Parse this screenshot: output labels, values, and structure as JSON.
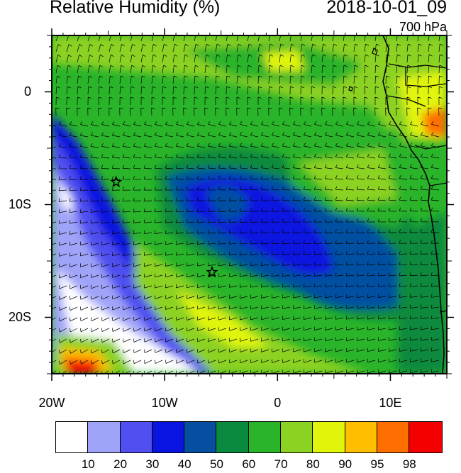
{
  "title": "Relative Humidity (%)",
  "datetime": "2018-10-01_09",
  "level": "700 hPa",
  "lat_ticks": [
    {
      "label": "0",
      "lat": 0
    },
    {
      "label": "10S",
      "lat": -10
    },
    {
      "label": "20S",
      "lat": -20
    }
  ],
  "lon_ticks": [
    {
      "label": "20W",
      "lon": -20
    },
    {
      "label": "10W",
      "lon": -10
    },
    {
      "label": "0",
      "lon": 0
    },
    {
      "label": "10E",
      "lon": 10
    }
  ],
  "map_extent": {
    "lon_min": -20,
    "lon_max": 15,
    "lat_min": -25,
    "lat_max": 5
  },
  "markers": [
    {
      "name": "star-marker",
      "lon": -14.3,
      "lat": -8.0
    },
    {
      "name": "star-marker",
      "lon": -5.8,
      "lat": -16.0
    }
  ],
  "colorbar": {
    "colors": [
      "#ffffff",
      "#a0a4f8",
      "#5050f0",
      "#0a14e0",
      "#064fa0",
      "#0a8a3e",
      "#2ab42a",
      "#8cd223",
      "#e1f50a",
      "#ffbe00",
      "#ff6e00",
      "#f50000"
    ],
    "labels": [
      "10",
      "20",
      "30",
      "40",
      "50",
      "60",
      "70",
      "80",
      "90",
      "95",
      "98"
    ]
  },
  "chart_data": {
    "type": "heatmap",
    "title": "Relative Humidity (%)",
    "subtitle": "2018-10-01_09",
    "level": "700 hPa",
    "x_axis": {
      "ticks": [
        "20W",
        "10W",
        "0",
        "10E"
      ],
      "range": [
        -20,
        15
      ]
    },
    "y_axis": {
      "ticks": [
        "0",
        "10S",
        "20S"
      ],
      "range": [
        -25,
        5
      ]
    },
    "contour_levels": [
      10,
      20,
      30,
      40,
      50,
      60,
      70,
      80,
      90,
      95,
      98
    ],
    "overlays": [
      "wind barbs",
      "coastlines",
      "country borders",
      "two star markers"
    ]
  }
}
